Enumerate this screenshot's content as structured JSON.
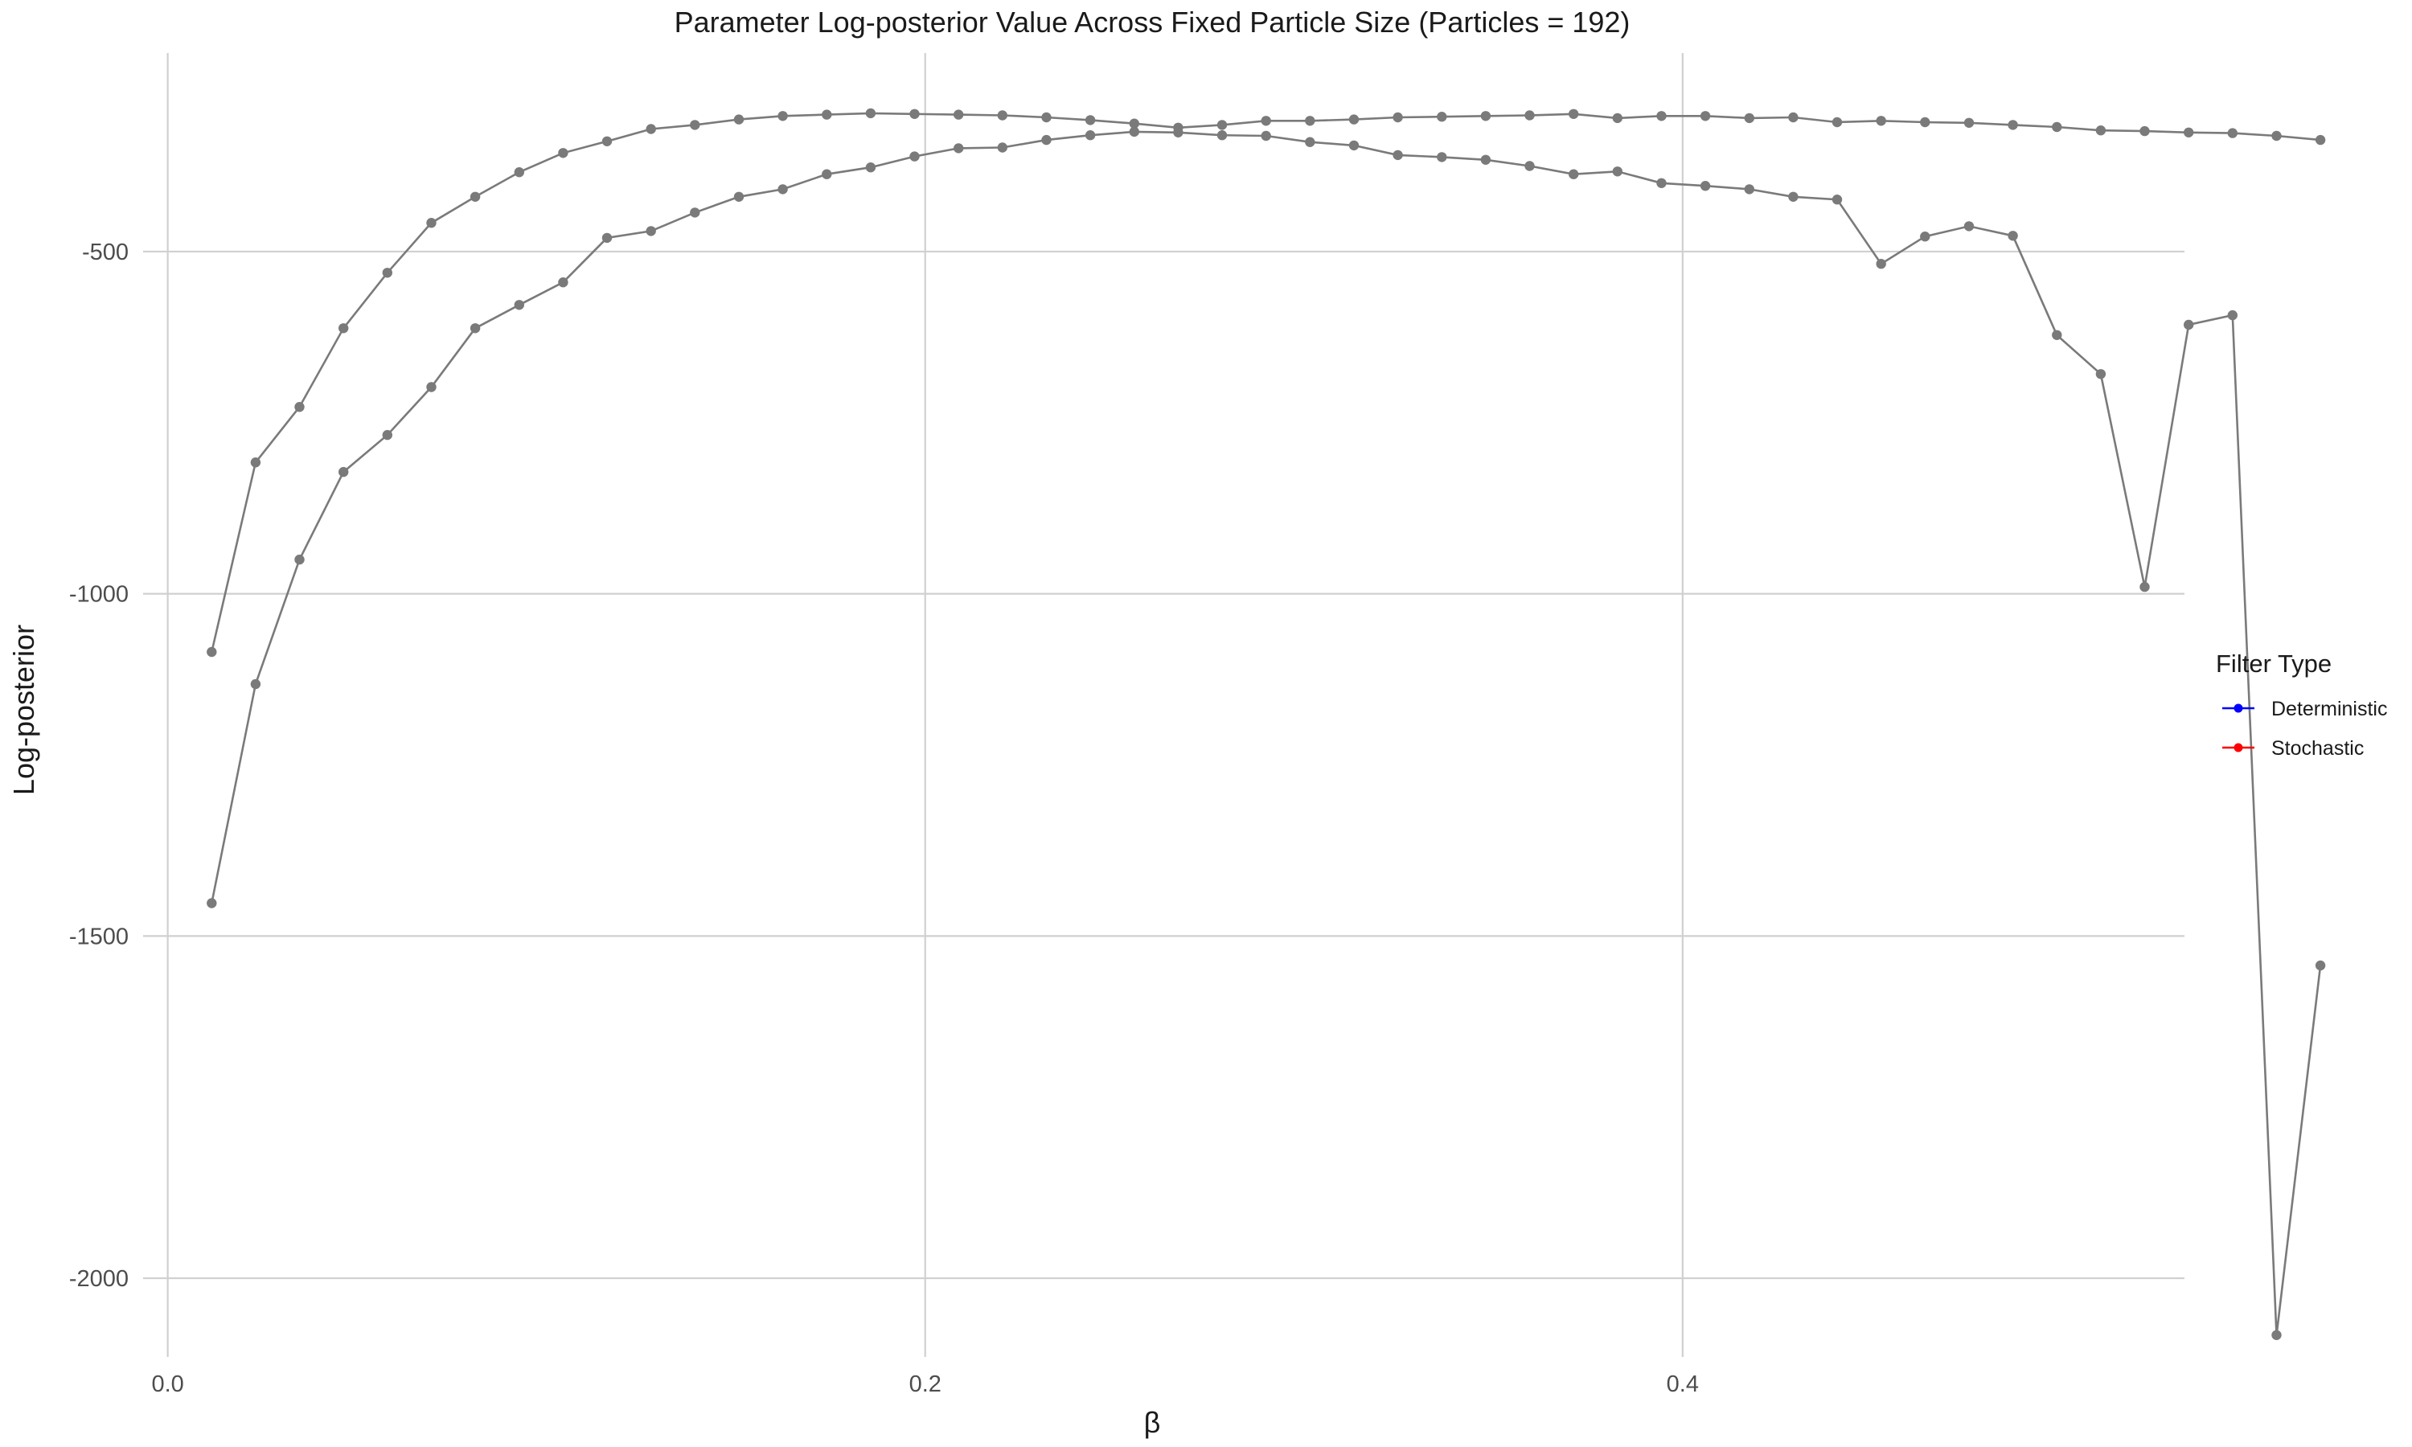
{
  "chart_data": {
    "type": "line",
    "title": "Parameter Log-posterior Value Across Fixed Particle Size (Particles = 192)",
    "xlabel": "β",
    "ylabel": "Log-posterior",
    "xlim": [
      -0.0065,
      0.5325
    ],
    "ylim": [
      -2115,
      -210
    ],
    "x_ticks": [
      0.0,
      0.2,
      0.4
    ],
    "x_tick_labels": [
      "0.0",
      "0.2",
      "0.4"
    ],
    "y_ticks": [
      -2000,
      -1500,
      -1000,
      -500
    ],
    "y_tick_labels": [
      "-2000",
      "-1500",
      "-1000",
      "-500"
    ],
    "grid": "on",
    "line_color": "#7a7a7a",
    "legend": {
      "title": "Filter Type",
      "position": "right",
      "entries": [
        {
          "label": "Deterministic",
          "color": "#0000ff"
        },
        {
          "label": "Stochastic",
          "color": "#ff0000"
        }
      ]
    },
    "series": [
      {
        "x": [
          0.0116,
          0.0232,
          0.0348,
          0.0464,
          0.058,
          0.0696,
          0.0812,
          0.0928,
          0.1044,
          0.116,
          0.1276,
          0.1392,
          0.1508,
          0.1624,
          0.174,
          0.1856,
          0.1972,
          0.2088,
          0.2204,
          0.232,
          0.2436,
          0.2552,
          0.2668,
          0.2784,
          0.29,
          0.3016,
          0.3132,
          0.3248,
          0.3364,
          0.348,
          0.3596,
          0.3712,
          0.3828,
          0.3944,
          0.406,
          0.4176,
          0.4292,
          0.4408,
          0.4524,
          0.464,
          0.4756,
          0.4872,
          0.4988,
          0.5104,
          0.522,
          0.5336,
          0.5452,
          0.5568,
          0.5684
        ],
        "y": [
          -1085,
          -808,
          -727,
          -612,
          -531,
          -458,
          -420,
          -384,
          -356,
          -339,
          -321,
          -315,
          -307,
          -302,
          -300,
          -298,
          -299,
          -300,
          -301,
          -304,
          -308,
          -313,
          -319,
          -315,
          -309,
          -309,
          -307,
          -304,
          -303,
          -302,
          -301,
          -299,
          -305,
          -302,
          -302,
          -305,
          -304,
          -311,
          -309,
          -311,
          -312,
          -315,
          -318,
          -323,
          -324,
          -326,
          -327,
          -331,
          -337
        ]
      },
      {
        "x": [
          0.0116,
          0.0232,
          0.0348,
          0.0464,
          0.058,
          0.0696,
          0.0812,
          0.0928,
          0.1044,
          0.116,
          0.1276,
          0.1392,
          0.1508,
          0.1624,
          0.174,
          0.1856,
          0.1972,
          0.2088,
          0.2204,
          0.232,
          0.2436,
          0.2552,
          0.2668,
          0.2784,
          0.29,
          0.3016,
          0.3132,
          0.3248,
          0.3364,
          0.348,
          0.3596,
          0.3712,
          0.3828,
          0.3944,
          0.406,
          0.4176,
          0.4292,
          0.4408,
          0.4524,
          0.464,
          0.4756,
          0.4872,
          0.4988,
          0.5104,
          0.522,
          0.5336,
          0.5452,
          0.5568,
          0.5684
        ],
        "y": [
          -1452,
          -1132,
          -950,
          -822,
          -768,
          -698,
          -612,
          -578,
          -545,
          -480,
          -470,
          -443,
          -420,
          -409,
          -387,
          -377,
          -361,
          -349,
          -348,
          -337,
          -330,
          -325,
          -326,
          -330,
          -331,
          -340,
          -345,
          -359,
          -362,
          -366,
          -375,
          -387,
          -383,
          -400,
          -404,
          -409,
          -420,
          -424,
          -518,
          -478,
          -463,
          -477,
          -622,
          -679,
          -990,
          -607,
          -593,
          -2083,
          -1543
        ]
      }
    ]
  }
}
